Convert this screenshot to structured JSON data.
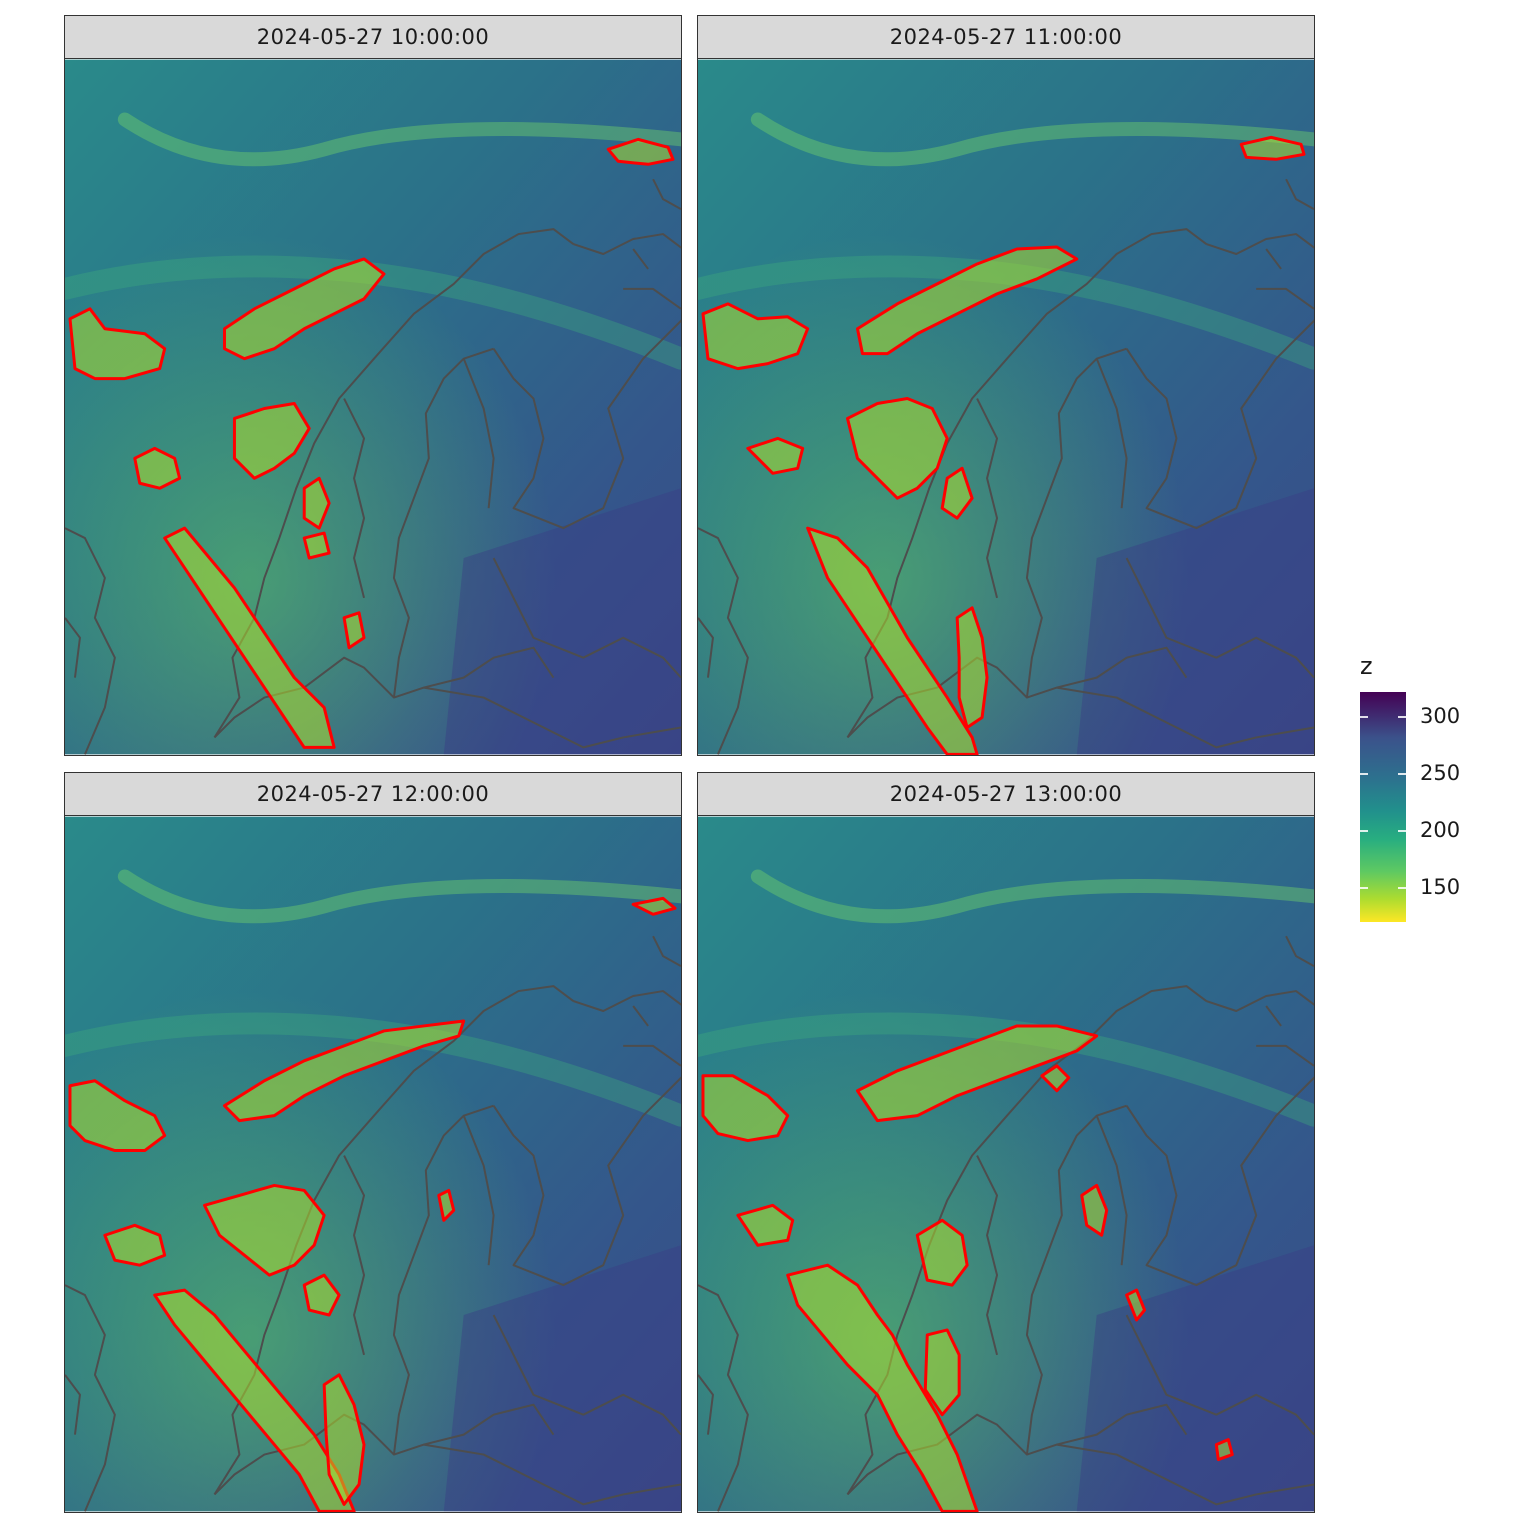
{
  "panels": [
    {
      "title": "2024-05-27 10:00:00"
    },
    {
      "title": "2024-05-27 11:00:00"
    },
    {
      "title": "2024-05-27 12:00:00"
    },
    {
      "title": "2024-05-27 13:00:00"
    }
  ],
  "legend": {
    "title": "z",
    "ticks": [
      "300",
      "250",
      "200",
      "150"
    ],
    "tick_values": [
      300,
      250,
      200,
      150
    ],
    "range": [
      120,
      322
    ],
    "palette": "viridis (reversed)"
  },
  "colors": {
    "contour": "#ff0000",
    "coastline": "#4d4d4d",
    "strip_background": "#d9d9d9"
  }
}
